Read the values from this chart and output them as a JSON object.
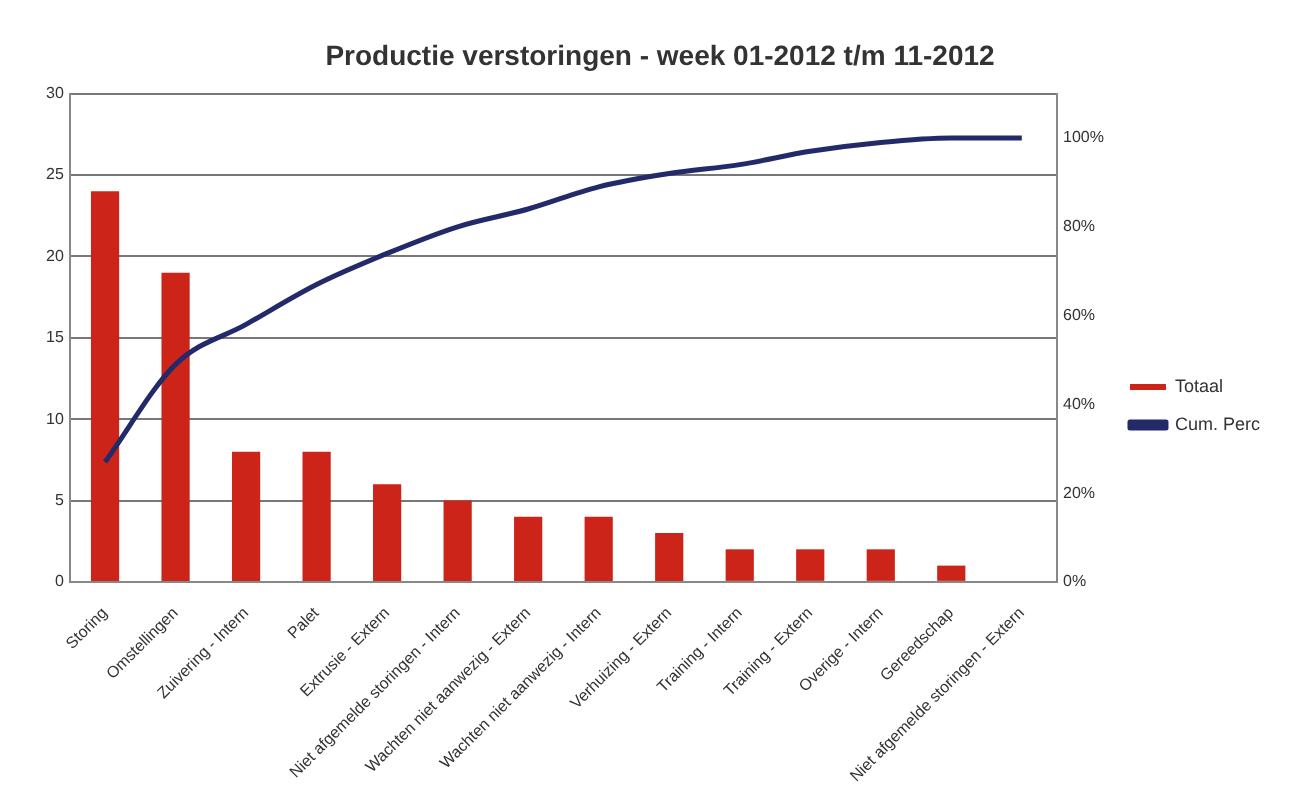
{
  "chart_data": {
    "type": "bar",
    "title": "Productie verstoringen - week 01-2012 t/m 11-2012",
    "categories": [
      "Storing",
      "Omstellingen",
      "Zuivering - Intern",
      "Palet",
      "Extrusie - Extern",
      "Niet afgemelde storingen - Intern",
      "Wachten niet aanwezig - Extern",
      "Wachten niet aanwezig - Intern",
      "Verhuizing - Extern",
      "Training - Intern",
      "Training - Extern",
      "Overige - Intern",
      "Gereedschap",
      "Niet afgemelde storingen - Extern"
    ],
    "series": [
      {
        "name": "Totaal",
        "color": "#cc2418",
        "values": [
          24,
          19,
          8,
          8,
          6,
          5,
          4,
          4,
          3,
          2,
          2,
          2,
          1,
          0
        ]
      },
      {
        "name": "Cum. Perc",
        "type": "line",
        "axis": "y2",
        "color": "#232a6a",
        "values": [
          27,
          49,
          58,
          67,
          74,
          80,
          84,
          89,
          92,
          94,
          97,
          99,
          100,
          100
        ]
      }
    ],
    "ylim": [
      0,
      30
    ],
    "yticks": [
      0,
      5,
      10,
      15,
      20,
      25,
      30
    ],
    "y2lim": [
      0,
      110
    ],
    "y2ticks": [
      {
        "value": 0,
        "label": "0%"
      },
      {
        "value": 20,
        "label": "20%"
      },
      {
        "value": 40,
        "label": "40%"
      },
      {
        "value": 60,
        "label": "60%"
      },
      {
        "value": 80,
        "label": "80%"
      },
      {
        "value": 100,
        "label": "100%"
      }
    ],
    "grid": "y",
    "legend": "right",
    "marker": "none"
  }
}
